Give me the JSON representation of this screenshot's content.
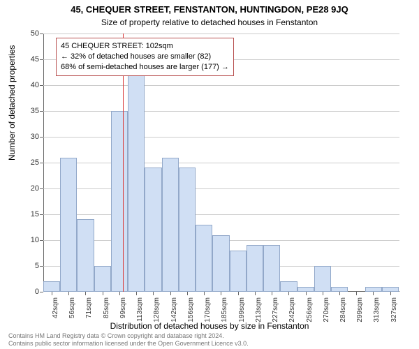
{
  "title_main": "45, CHEQUER STREET, FENSTANTON, HUNTINGDON, PE28 9JQ",
  "title_sub": "Size of property relative to detached houses in Fenstanton",
  "y_axis_label": "Number of detached properties",
  "x_axis_label": "Distribution of detached houses by size in Fenstanton",
  "chart": {
    "type": "histogram",
    "background_color": "#ffffff",
    "grid_color": "#cccccc",
    "axis_color": "#666666",
    "bar_fill": "#d0dff4",
    "bar_border": "#92a8c9",
    "marker_color": "#d93a3a",
    "annotation_border": "#b85050",
    "ylim": [
      0,
      50
    ],
    "ytick_step": 5,
    "xlim": [
      35,
      335
    ],
    "xtick_step": 14.26,
    "xtick_start": 42,
    "xtick_suffix": "sqm",
    "marker_x": 102,
    "bar_width_value": 14.26,
    "label_fontsize": 12,
    "tick_fontsize": 10,
    "bars": [
      {
        "x0": 35.0,
        "h": 2
      },
      {
        "x0": 49.26,
        "h": 26
      },
      {
        "x0": 63.52,
        "h": 14
      },
      {
        "x0": 77.78,
        "h": 5
      },
      {
        "x0": 92.04,
        "h": 35
      },
      {
        "x0": 106.3,
        "h": 42
      },
      {
        "x0": 120.56,
        "h": 24
      },
      {
        "x0": 134.82,
        "h": 26
      },
      {
        "x0": 149.08,
        "h": 24
      },
      {
        "x0": 163.34,
        "h": 13
      },
      {
        "x0": 177.6,
        "h": 11
      },
      {
        "x0": 191.86,
        "h": 8
      },
      {
        "x0": 206.12,
        "h": 9
      },
      {
        "x0": 220.38,
        "h": 9
      },
      {
        "x0": 234.64,
        "h": 2
      },
      {
        "x0": 248.9,
        "h": 1
      },
      {
        "x0": 263.16,
        "h": 5
      },
      {
        "x0": 277.42,
        "h": 1
      },
      {
        "x0": 291.68,
        "h": 0
      },
      {
        "x0": 305.94,
        "h": 1
      },
      {
        "x0": 320.2,
        "h": 1
      }
    ]
  },
  "annotation": {
    "line1": "45 CHEQUER STREET: 102sqm",
    "line2": "← 32% of detached houses are smaller (82)",
    "line3": "68% of semi-detached houses are larger (177) →"
  },
  "footer": {
    "line1": "Contains HM Land Registry data © Crown copyright and database right 2024.",
    "line2": "Contains public sector information licensed under the Open Government Licence v3.0."
  }
}
